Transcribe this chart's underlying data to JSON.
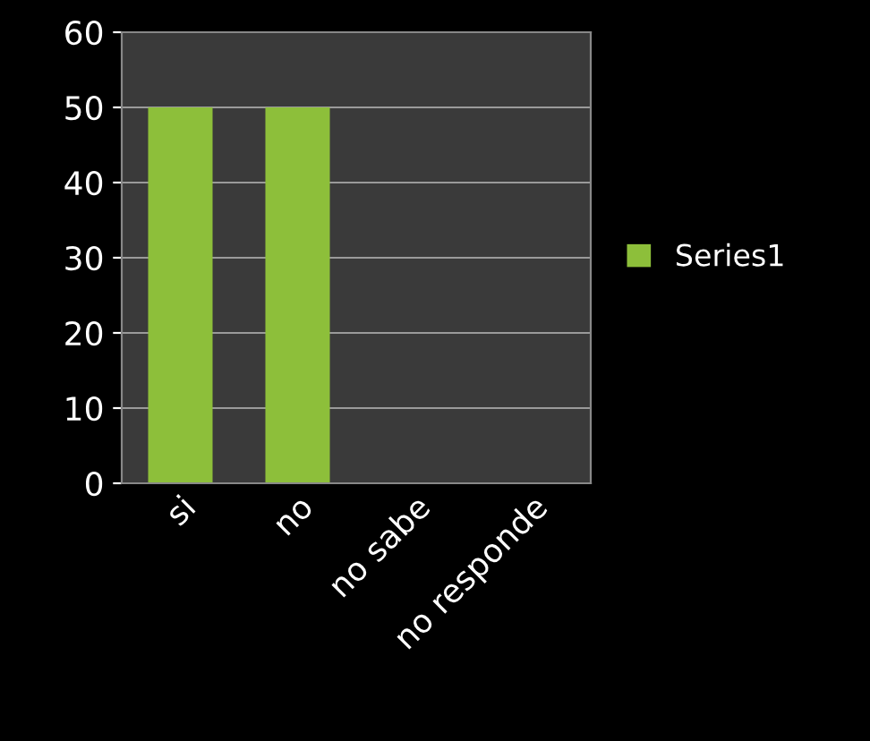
{
  "chart_data": {
    "type": "bar",
    "categories": [
      "si",
      "no",
      "no sabe",
      "no responde"
    ],
    "series": [
      {
        "name": "Series1",
        "color": "#8dbf3a",
        "values": [
          50,
          50,
          0,
          0
        ]
      }
    ],
    "ylim": [
      0,
      60
    ],
    "yticks": [
      0,
      10,
      20,
      30,
      40,
      50,
      60
    ],
    "grid": "y",
    "legend": "right"
  }
}
